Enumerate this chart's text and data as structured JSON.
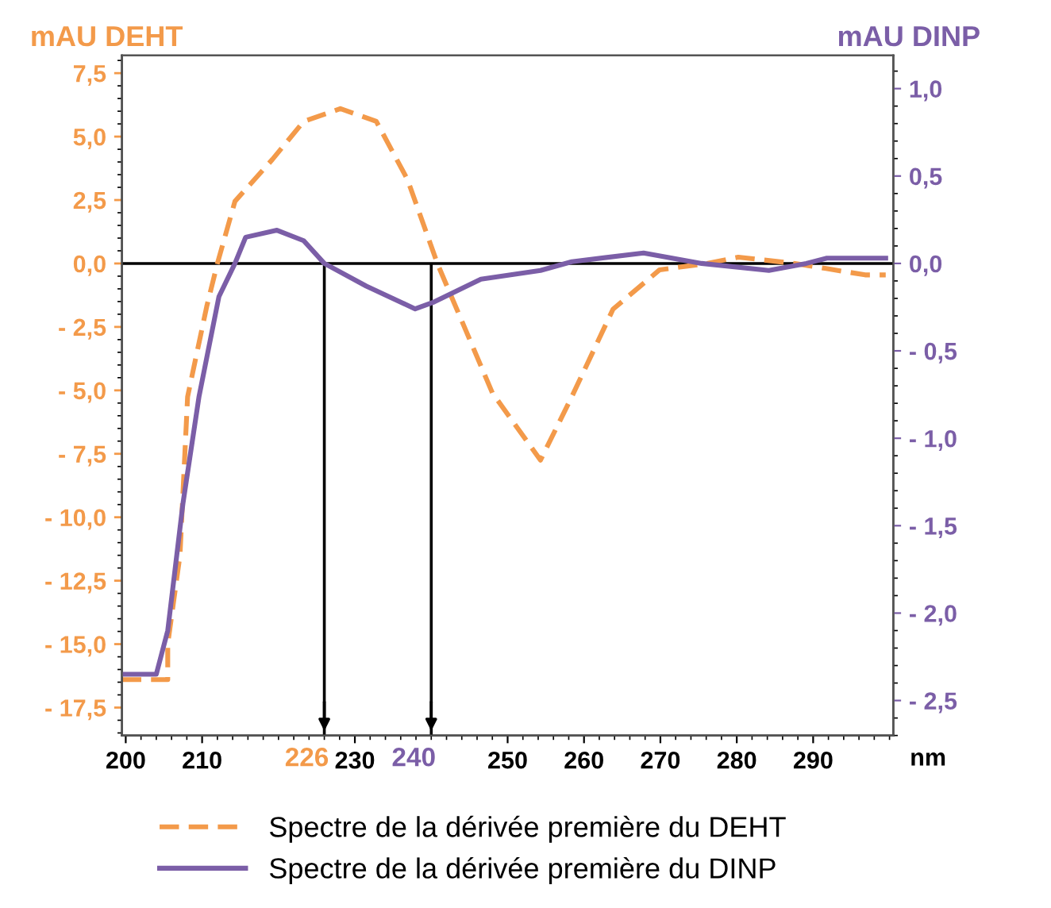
{
  "chart_data": {
    "type": "line",
    "xlabel": "nm",
    "ylabel": "mAU DEHT",
    "y2label": "mAU DINP",
    "xlim": [
      199.5,
      300.5
    ],
    "xticks": [
      200,
      210,
      230,
      250,
      260,
      270,
      280,
      290
    ],
    "ylim": [
      -18.6,
      8.2
    ],
    "yticks": [
      {
        "value": 7.5,
        "label": "7,5"
      },
      {
        "value": 5,
        "label": "5,0"
      },
      {
        "value": 2.5,
        "label": "2,5"
      },
      {
        "value": 0,
        "label": "0,0"
      },
      {
        "value": -2.5,
        "label": "- 2,5"
      },
      {
        "value": -5,
        "label": "- 5,0"
      },
      {
        "value": -7.5,
        "label": "- 7,5"
      },
      {
        "value": -10,
        "label": "- 10,0"
      },
      {
        "value": -12.5,
        "label": "- 12,5"
      },
      {
        "value": -15,
        "label": "- 15,0"
      },
      {
        "value": -17.5,
        "label": "- 17,5"
      }
    ],
    "y2lim": [
      -2.7,
      1.19
    ],
    "y2ticks": [
      {
        "value": 1,
        "label": "1,0"
      },
      {
        "value": 0.5,
        "label": "0,5"
      },
      {
        "value": 0,
        "label": "0,0"
      },
      {
        "value": -0.5,
        "label": "- 0,5"
      },
      {
        "value": -1,
        "label": "- 1,0"
      },
      {
        "value": -1.5,
        "label": "- 1,5"
      },
      {
        "value": -2,
        "label": "- 2,0"
      },
      {
        "value": -2.5,
        "label": "- 2,5"
      }
    ],
    "grid": false,
    "legend": "bottom",
    "ref_lines": [
      {
        "axis": "y",
        "value": 0,
        "color": "#000000"
      },
      {
        "axis": "x",
        "value": 226,
        "label": "226",
        "color": "#000000"
      },
      {
        "axis": "x",
        "value": 240,
        "label": "240",
        "color": "#000000"
      }
    ],
    "series": [
      {
        "name": "Spectre de la dérivée première du DEHT",
        "color": "#f39a4a",
        "line_style": "dashed",
        "x": [
          199.5,
          205.5,
          205.5,
          207.1,
          208.1,
          210.6,
          212.0,
          214.3,
          219.2,
          223.3,
          228.1,
          232.8,
          236.9,
          240.8,
          248.0,
          254.3,
          258.4,
          263.8,
          269.9,
          276.1,
          280.2,
          287.6,
          291.7,
          296.8,
          299.5
        ],
        "values": [
          -16.4,
          -16.4,
          -15.0,
          -11.5,
          -5.25,
          -1.7,
          0.0,
          2.45,
          4.1,
          5.6,
          6.1,
          5.6,
          3.3,
          0.0,
          -5.1,
          -7.75,
          -5.25,
          -1.8,
          -0.25,
          0.0,
          0.25,
          0.0,
          -0.2,
          -0.45,
          -0.45
        ]
      },
      {
        "name": "Spectre de la dérivée première du DINP",
        "color": "#7b5ea7",
        "line_style": "solid",
        "axis": "y2",
        "x": [
          199.5,
          204.0,
          205.5,
          207.5,
          209.6,
          212.2,
          214.3,
          215.7,
          219.8,
          223.3,
          226.0,
          231.5,
          237.9,
          240.4,
          246.5,
          254.3,
          258.4,
          267.8,
          275.4,
          284.2,
          289.1,
          291.8,
          299.5
        ],
        "values": [
          -2.35,
          -2.35,
          -2.1,
          -1.37,
          -0.76,
          -0.19,
          0.0,
          0.15,
          0.19,
          0.13,
          0.0,
          -0.13,
          -0.26,
          -0.22,
          -0.09,
          -0.04,
          0.01,
          0.06,
          0.0,
          -0.04,
          0.0,
          0.03,
          0.03
        ]
      }
    ]
  }
}
